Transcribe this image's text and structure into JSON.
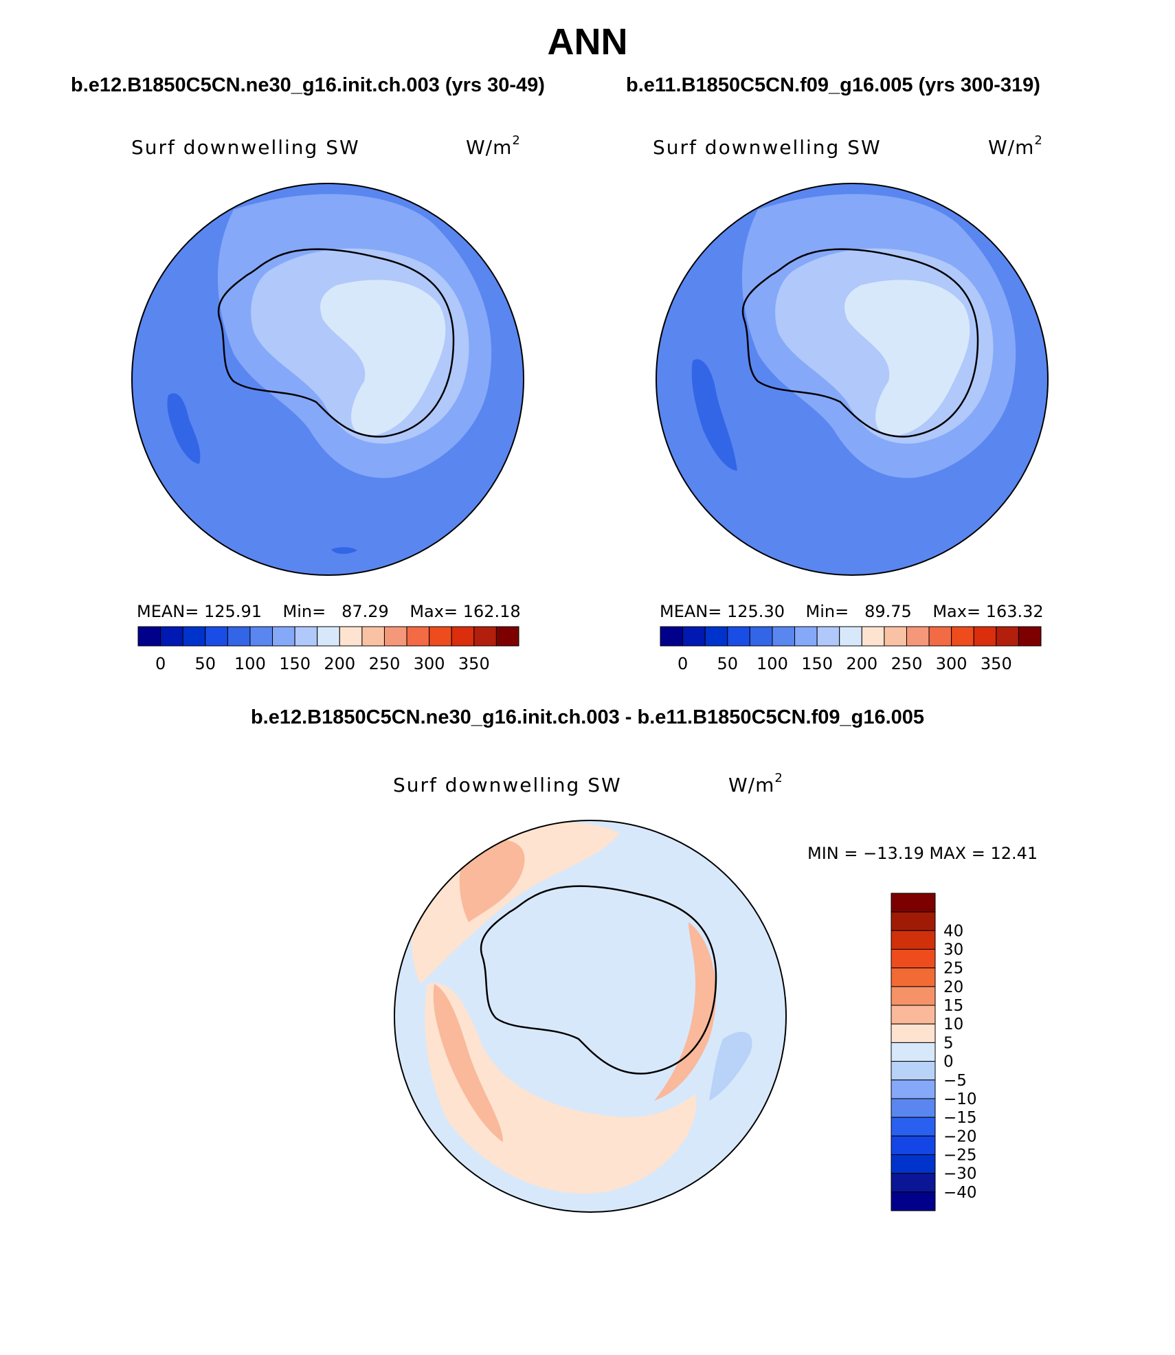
{
  "figure": {
    "title": "ANN",
    "panels": [
      {
        "case": "b.e12.B1850C5CN.ne30_g16.init.ch.003 (yrs 30-49)",
        "variable": "Surf downwelling SW",
        "units": "W/m2",
        "units_base": "W/m",
        "units_sup": "2",
        "mean_label": "MEAN=",
        "mean_value": "125.91",
        "min_label": "Min=",
        "min_value": "87.29",
        "max_label": "Max=",
        "max_value": "162.18"
      },
      {
        "case": "b.e11.B1850C5CN.f09_g16.005 (yrs 300-319)",
        "variable": "Surf downwelling SW",
        "units": "W/m2",
        "units_base": "W/m",
        "units_sup": "2",
        "mean_label": "MEAN=",
        "mean_value": "125.30",
        "min_label": "Min=",
        "min_value": "89.75",
        "max_label": "Max=",
        "max_value": "163.32"
      }
    ],
    "difference": {
      "title": "b.e12.B1850C5CN.ne30_g16.init.ch.003 - b.e11.B1850C5CN.f09_g16.005",
      "variable": "Surf downwelling SW",
      "units": "W/m2",
      "units_base": "W/m",
      "units_sup": "2",
      "minmax_text": "MIN = −13.19 MAX =   12.41"
    }
  },
  "chart_data": [
    {
      "type": "heatmap",
      "projection": "south-polar-stereographic",
      "title": "Surf downwelling SW",
      "units": "W/m2",
      "stats": {
        "mean": 125.91,
        "min": 87.29,
        "max": 162.18
      },
      "colorbar": {
        "orientation": "horizontal",
        "levels": [
          0,
          25,
          50,
          75,
          100,
          125,
          150,
          175,
          200,
          225,
          250,
          275,
          300,
          325,
          350
        ],
        "tick_labels": [
          "0",
          "50",
          "100",
          "150",
          "200",
          "250",
          "300",
          "350"
        ],
        "colors": [
          "#00008b",
          "#0019b3",
          "#0033cc",
          "#1a4de6",
          "#3366e6",
          "#5a86f0",
          "#85a8f8",
          "#b0c8fa",
          "#d8e8fb",
          "#fde3d0",
          "#f9c2a4",
          "#f5987a",
          "#f26b44",
          "#ee4c1d",
          "#da2e0d",
          "#b21f0c",
          "#7d0000"
        ]
      }
    },
    {
      "type": "heatmap",
      "projection": "south-polar-stereographic",
      "title": "Surf downwelling SW",
      "units": "W/m2",
      "stats": {
        "mean": 125.3,
        "min": 89.75,
        "max": 163.32
      },
      "colorbar": {
        "orientation": "horizontal",
        "levels": [
          0,
          25,
          50,
          75,
          100,
          125,
          150,
          175,
          200,
          225,
          250,
          275,
          300,
          325,
          350
        ],
        "tick_labels": [
          "0",
          "50",
          "100",
          "150",
          "200",
          "250",
          "300",
          "350"
        ],
        "colors": [
          "#00008b",
          "#0019b3",
          "#0033cc",
          "#1a4de6",
          "#3366e6",
          "#5a86f0",
          "#85a8f8",
          "#b0c8fa",
          "#d8e8fb",
          "#fde3d0",
          "#f9c2a4",
          "#f5987a",
          "#f26b44",
          "#ee4c1d",
          "#da2e0d",
          "#b21f0c",
          "#7d0000"
        ]
      }
    },
    {
      "type": "heatmap",
      "projection": "south-polar-stereographic",
      "title": "Surf downwelling SW",
      "units": "W/m2",
      "stats": {
        "min": -13.19,
        "max": 12.41
      },
      "colorbar": {
        "orientation": "vertical",
        "levels": [
          -40,
          -30,
          -25,
          -20,
          -15,
          -10,
          -5,
          0,
          5,
          10,
          15,
          20,
          25,
          30,
          40
        ],
        "tick_labels": [
          "−40",
          "−30",
          "−25",
          "−20",
          "−15",
          "−10",
          "−5",
          "0",
          "5",
          "10",
          "15",
          "20",
          "25",
          "30",
          "40"
        ],
        "colors": [
          "#00008b",
          "#0a1696",
          "#0033cc",
          "#1446e6",
          "#2a60f0",
          "#5a86f0",
          "#85a8f8",
          "#b8d2f8",
          "#d8e8fb",
          "#fde3d0",
          "#f9b99a",
          "#f59268",
          "#f26b35",
          "#ee4c1d",
          "#d0300a",
          "#a01b05",
          "#7d0000"
        ]
      }
    }
  ]
}
